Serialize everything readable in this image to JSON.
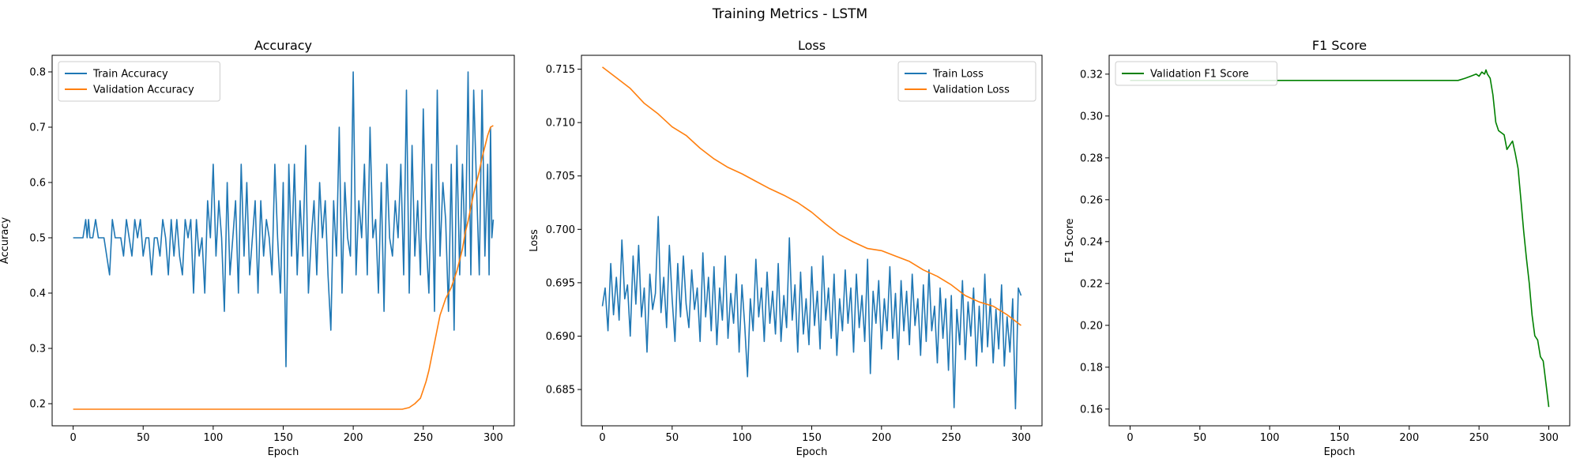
{
  "figure": {
    "title": "Training Metrics - LSTM"
  },
  "chart_data": [
    {
      "type": "line",
      "title": "Accuracy",
      "xlabel": "Epoch",
      "ylabel": "Accuracy",
      "xlim": [
        -15,
        315
      ],
      "ylim": [
        0.16,
        0.83
      ],
      "xticks": [
        0,
        50,
        100,
        150,
        200,
        250,
        300
      ],
      "xtick_labels": [
        "0",
        "50",
        "100",
        "150",
        "200",
        "250",
        "300"
      ],
      "yticks": [
        0.2,
        0.3,
        0.4,
        0.5,
        0.6,
        0.7,
        0.8
      ],
      "ytick_labels": [
        "0.2",
        "0.3",
        "0.4",
        "0.5",
        "0.6",
        "0.7",
        "0.8"
      ],
      "grid": false,
      "legend": "upper-left",
      "series": [
        {
          "name": "Train Accuracy",
          "color": "#1f77b4",
          "x": [
            0,
            4,
            7,
            9,
            10,
            11,
            12,
            14,
            16,
            18,
            20,
            22,
            24,
            26,
            28,
            30,
            32,
            34,
            36,
            38,
            40,
            42,
            44,
            46,
            48,
            50,
            52,
            54,
            56,
            58,
            60,
            62,
            64,
            66,
            68,
            70,
            72,
            74,
            76,
            78,
            80,
            82,
            84,
            86,
            88,
            90,
            92,
            94,
            96,
            98,
            100,
            102,
            104,
            106,
            108,
            110,
            112,
            114,
            116,
            118,
            120,
            122,
            124,
            126,
            128,
            130,
            132,
            134,
            136,
            138,
            140,
            142,
            144,
            146,
            148,
            150,
            152,
            154,
            156,
            158,
            160,
            162,
            164,
            166,
            168,
            170,
            172,
            174,
            176,
            178,
            180,
            182,
            184,
            186,
            188,
            190,
            192,
            194,
            196,
            198,
            200,
            202,
            204,
            206,
            208,
            210,
            212,
            214,
            216,
            218,
            220,
            222,
            224,
            226,
            228,
            230,
            232,
            234,
            236,
            238,
            240,
            242,
            244,
            246,
            248,
            250,
            252,
            254,
            256,
            258,
            260,
            262,
            264,
            266,
            268,
            270,
            272,
            274,
            276,
            278,
            280,
            282,
            284,
            286,
            288,
            290,
            292,
            294,
            296,
            297,
            298,
            299,
            300
          ],
          "values": [
            0.5,
            0.5,
            0.5,
            0.533,
            0.5,
            0.533,
            0.5,
            0.5,
            0.533,
            0.5,
            0.5,
            0.5,
            0.467,
            0.433,
            0.533,
            0.5,
            0.5,
            0.5,
            0.467,
            0.533,
            0.5,
            0.467,
            0.533,
            0.5,
            0.533,
            0.467,
            0.5,
            0.5,
            0.433,
            0.5,
            0.5,
            0.467,
            0.533,
            0.5,
            0.433,
            0.533,
            0.467,
            0.533,
            0.467,
            0.433,
            0.533,
            0.5,
            0.533,
            0.4,
            0.533,
            0.467,
            0.5,
            0.4,
            0.567,
            0.5,
            0.633,
            0.467,
            0.567,
            0.5,
            0.367,
            0.6,
            0.433,
            0.5,
            0.567,
            0.4,
            0.633,
            0.467,
            0.6,
            0.433,
            0.5,
            0.567,
            0.4,
            0.567,
            0.467,
            0.533,
            0.5,
            0.433,
            0.633,
            0.5,
            0.4,
            0.6,
            0.267,
            0.633,
            0.467,
            0.633,
            0.433,
            0.567,
            0.467,
            0.667,
            0.4,
            0.5,
            0.567,
            0.433,
            0.6,
            0.5,
            0.567,
            0.433,
            0.333,
            0.567,
            0.467,
            0.7,
            0.4,
            0.6,
            0.5,
            0.467,
            0.8,
            0.433,
            0.567,
            0.5,
            0.633,
            0.433,
            0.7,
            0.5,
            0.533,
            0.4,
            0.6,
            0.367,
            0.633,
            0.5,
            0.467,
            0.567,
            0.5,
            0.633,
            0.433,
            0.767,
            0.4,
            0.667,
            0.467,
            0.567,
            0.433,
            0.733,
            0.5,
            0.4,
            0.633,
            0.367,
            0.767,
            0.467,
            0.6,
            0.533,
            0.367,
            0.633,
            0.333,
            0.667,
            0.433,
            0.633,
            0.467,
            0.8,
            0.433,
            0.767,
            0.6,
            0.433,
            0.767,
            0.467,
            0.633,
            0.433,
            0.7,
            0.5,
            0.533
          ]
        },
        {
          "name": "Validation Accuracy",
          "color": "#ff7f0e",
          "x": [
            0,
            50,
            100,
            150,
            200,
            235,
            240,
            244,
            248,
            250,
            252,
            254,
            256,
            258,
            260,
            262,
            264,
            266,
            268,
            270,
            272,
            274,
            276,
            278,
            280,
            282,
            284,
            286,
            288,
            290,
            292,
            294,
            296,
            298,
            300
          ],
          "values": [
            0.19,
            0.19,
            0.19,
            0.19,
            0.19,
            0.19,
            0.193,
            0.2,
            0.21,
            0.225,
            0.24,
            0.26,
            0.285,
            0.31,
            0.335,
            0.36,
            0.375,
            0.39,
            0.4,
            0.41,
            0.425,
            0.44,
            0.46,
            0.48,
            0.51,
            0.53,
            0.555,
            0.58,
            0.6,
            0.62,
            0.645,
            0.665,
            0.685,
            0.7,
            0.703
          ]
        }
      ]
    },
    {
      "type": "line",
      "title": "Loss",
      "xlabel": "Epoch",
      "ylabel": "Loss",
      "xlim": [
        -15,
        315
      ],
      "ylim": [
        0.6816,
        0.7163
      ],
      "xticks": [
        0,
        50,
        100,
        150,
        200,
        250,
        300
      ],
      "xtick_labels": [
        "0",
        "50",
        "100",
        "150",
        "200",
        "250",
        "300"
      ],
      "yticks": [
        0.685,
        0.69,
        0.695,
        0.7,
        0.705,
        0.71,
        0.715
      ],
      "ytick_labels": [
        "0.685",
        "0.690",
        "0.695",
        "0.700",
        "0.705",
        "0.710",
        "0.715"
      ],
      "grid": false,
      "legend": "upper-right",
      "series": [
        {
          "name": "Train Loss",
          "color": "#1f77b4",
          "x": [
            0,
            2,
            4,
            6,
            8,
            10,
            12,
            14,
            16,
            18,
            20,
            22,
            24,
            26,
            28,
            30,
            32,
            34,
            36,
            38,
            40,
            42,
            44,
            46,
            48,
            50,
            52,
            54,
            56,
            58,
            60,
            62,
            64,
            66,
            68,
            70,
            72,
            74,
            76,
            78,
            80,
            82,
            84,
            86,
            88,
            90,
            92,
            94,
            96,
            98,
            100,
            102,
            104,
            106,
            108,
            110,
            112,
            114,
            116,
            118,
            120,
            122,
            124,
            126,
            128,
            130,
            132,
            134,
            136,
            138,
            140,
            142,
            144,
            146,
            148,
            150,
            152,
            154,
            156,
            158,
            160,
            162,
            164,
            166,
            168,
            170,
            172,
            174,
            176,
            178,
            180,
            182,
            184,
            186,
            188,
            190,
            192,
            194,
            196,
            198,
            200,
            202,
            204,
            206,
            208,
            210,
            212,
            214,
            216,
            218,
            220,
            222,
            224,
            226,
            228,
            230,
            232,
            234,
            236,
            238,
            240,
            242,
            244,
            246,
            248,
            250,
            252,
            254,
            256,
            258,
            260,
            262,
            264,
            266,
            268,
            270,
            272,
            274,
            276,
            278,
            280,
            282,
            284,
            286,
            288,
            290,
            292,
            294,
            296,
            298,
            300
          ],
          "values": [
            0.6928,
            0.6945,
            0.6905,
            0.6968,
            0.692,
            0.6955,
            0.6915,
            0.699,
            0.6935,
            0.6948,
            0.69,
            0.6975,
            0.693,
            0.6985,
            0.6918,
            0.6945,
            0.6885,
            0.6958,
            0.6925,
            0.694,
            0.7012,
            0.6922,
            0.6955,
            0.6908,
            0.6985,
            0.6935,
            0.6895,
            0.6968,
            0.6918,
            0.6975,
            0.693,
            0.6908,
            0.6962,
            0.6925,
            0.6945,
            0.6895,
            0.6978,
            0.6918,
            0.6955,
            0.6905,
            0.6965,
            0.6892,
            0.6945,
            0.6915,
            0.6975,
            0.6898,
            0.694,
            0.6912,
            0.6958,
            0.6885,
            0.6948,
            0.691,
            0.6862,
            0.6935,
            0.6905,
            0.6972,
            0.6918,
            0.6945,
            0.6895,
            0.696,
            0.6912,
            0.6942,
            0.6902,
            0.6968,
            0.6895,
            0.6938,
            0.6908,
            0.6992,
            0.6915,
            0.6948,
            0.6885,
            0.696,
            0.6902,
            0.6935,
            0.6892,
            0.6965,
            0.691,
            0.6942,
            0.6888,
            0.6975,
            0.6915,
            0.6945,
            0.6898,
            0.6958,
            0.6882,
            0.6935,
            0.6905,
            0.6962,
            0.6912,
            0.6945,
            0.6885,
            0.6958,
            0.6908,
            0.6938,
            0.6895,
            0.6972,
            0.6865,
            0.6942,
            0.6912,
            0.6952,
            0.6888,
            0.6935,
            0.6905,
            0.6965,
            0.6898,
            0.694,
            0.6878,
            0.6952,
            0.6905,
            0.6942,
            0.6892,
            0.6958,
            0.691,
            0.6935,
            0.6882,
            0.6948,
            0.6895,
            0.6962,
            0.6905,
            0.6928,
            0.6875,
            0.6945,
            0.6898,
            0.6935,
            0.6868,
            0.6938,
            0.6833,
            0.6925,
            0.6892,
            0.6952,
            0.6878,
            0.6932,
            0.69,
            0.6945,
            0.6872,
            0.6928,
            0.6885,
            0.6958,
            0.689,
            0.6935,
            0.6875,
            0.6925,
            0.6888,
            0.6948,
            0.6872,
            0.6918,
            0.6885,
            0.6935,
            0.6832,
            0.6945,
            0.6938
          ]
        },
        {
          "name": "Validation Loss",
          "color": "#ff7f0e",
          "x": [
            0,
            10,
            20,
            30,
            40,
            50,
            60,
            70,
            80,
            90,
            100,
            110,
            120,
            130,
            140,
            150,
            160,
            170,
            180,
            190,
            200,
            210,
            220,
            230,
            240,
            250,
            260,
            270,
            280,
            290,
            295,
            300
          ],
          "values": [
            0.7152,
            0.7142,
            0.7132,
            0.7118,
            0.7108,
            0.7096,
            0.7088,
            0.7076,
            0.7066,
            0.7058,
            0.7052,
            0.7045,
            0.7038,
            0.7032,
            0.7025,
            0.7016,
            0.7005,
            0.6995,
            0.6988,
            0.6982,
            0.698,
            0.6975,
            0.697,
            0.6962,
            0.6956,
            0.6948,
            0.6938,
            0.6932,
            0.6928,
            0.692,
            0.6915,
            0.691
          ]
        }
      ]
    },
    {
      "type": "line",
      "title": "F1 Score",
      "xlabel": "Epoch",
      "ylabel": "F1 Score",
      "xlim": [
        -15,
        315
      ],
      "ylim": [
        0.152,
        0.329
      ],
      "xticks": [
        0,
        50,
        100,
        150,
        200,
        250,
        300
      ],
      "xtick_labels": [
        "0",
        "50",
        "100",
        "150",
        "200",
        "250",
        "300"
      ],
      "yticks": [
        0.16,
        0.18,
        0.2,
        0.22,
        0.24,
        0.26,
        0.28,
        0.3,
        0.32
      ],
      "ytick_labels": [
        "0.16",
        "0.18",
        "0.20",
        "0.22",
        "0.24",
        "0.26",
        "0.28",
        "0.30",
        "0.32"
      ],
      "grid": false,
      "legend": "upper-left",
      "series": [
        {
          "name": "Validation F1 Score",
          "color": "#008000",
          "x": [
            0,
            50,
            100,
            150,
            200,
            235,
            240,
            244,
            248,
            250,
            252,
            254,
            255,
            256,
            258,
            260,
            262,
            264,
            266,
            268,
            270,
            272,
            274,
            276,
            278,
            280,
            282,
            284,
            286,
            288,
            290,
            292,
            294,
            296,
            298,
            300
          ],
          "values": [
            0.317,
            0.317,
            0.317,
            0.317,
            0.317,
            0.317,
            0.318,
            0.319,
            0.32,
            0.319,
            0.321,
            0.32,
            0.322,
            0.32,
            0.318,
            0.31,
            0.297,
            0.293,
            0.292,
            0.291,
            0.284,
            0.286,
            0.288,
            0.282,
            0.275,
            0.26,
            0.245,
            0.232,
            0.22,
            0.205,
            0.195,
            0.193,
            0.185,
            0.183,
            0.172,
            0.161
          ]
        }
      ]
    }
  ]
}
